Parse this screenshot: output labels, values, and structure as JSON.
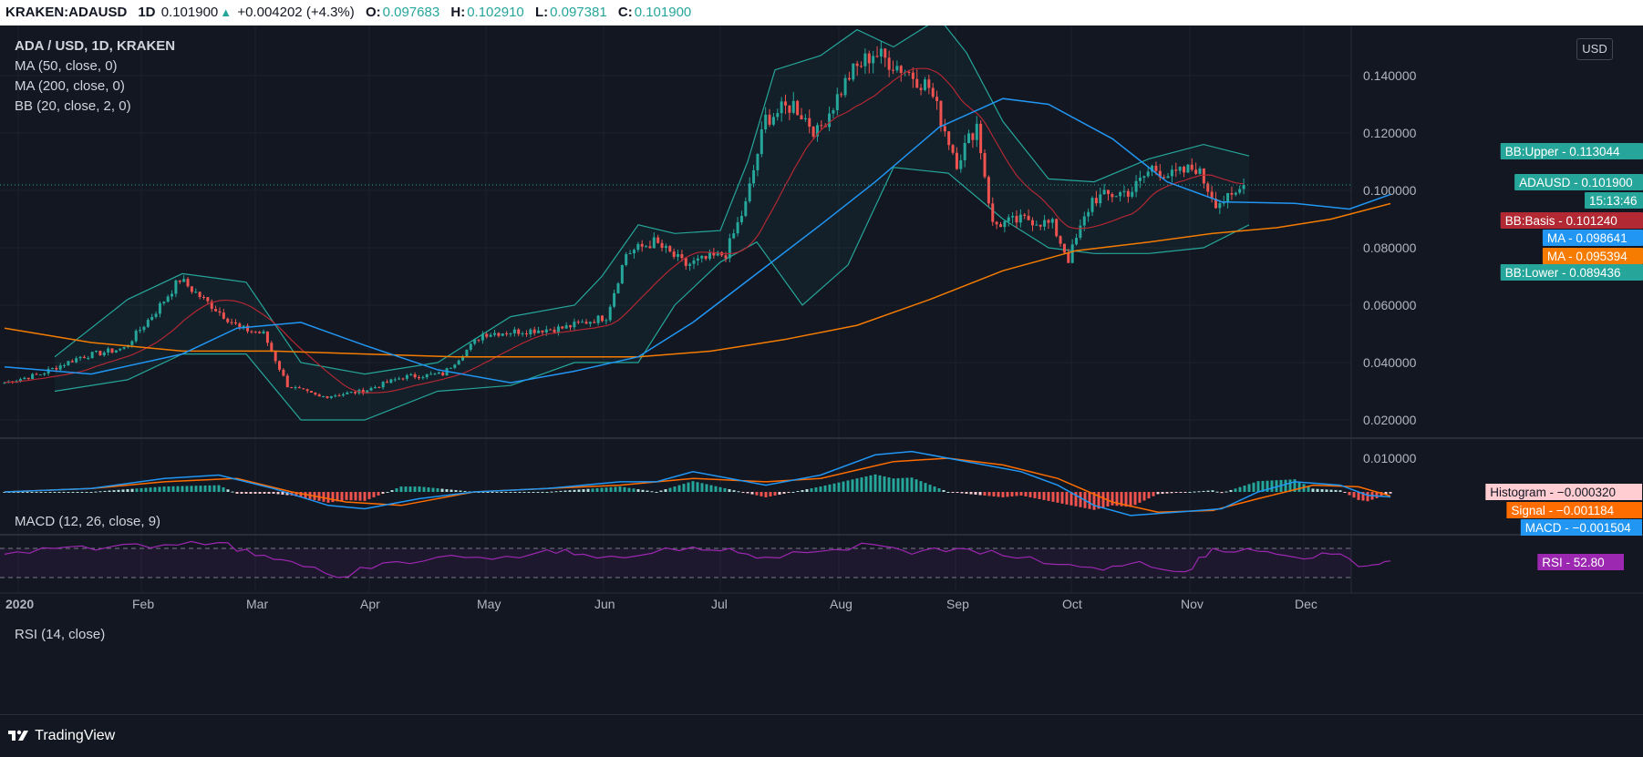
{
  "header": {
    "symbol": "KRAKEN:ADAUSD",
    "interval": "1D",
    "last": "0.101900",
    "arrow": "▲",
    "change": "+0.004202 (+4.3%)",
    "o_label": "O:",
    "o_value": "0.097683",
    "h_label": "H:",
    "h_value": "0.102910",
    "l_label": "L:",
    "l_value": "0.097381",
    "c_label": "C:",
    "c_value": "0.101900"
  },
  "legend": {
    "title": "ADA / USD, 1D, KRAKEN",
    "ma50": "MA (50, close, 0)",
    "ma200": "MA (200, close, 0)",
    "bb": "BB (20, close, 2, 0)",
    "macd": "MACD (12, 26, close, 9)",
    "rsi": "RSI (14, close)"
  },
  "currency_button": "USD",
  "branding": "TradingView",
  "colors": {
    "up": "#26a69a",
    "down": "#ef5350",
    "bb": "#26a69a",
    "bb_basis": "#b22833",
    "ma50": "#2196f3",
    "ma200": "#f57c00",
    "macd": "#2196f3",
    "signal": "#ff6d00",
    "rsi": "#9c27b0"
  },
  "chart_data": {
    "type": "candlestick",
    "price_axis": [
      "0.140000",
      "0.120000",
      "0.100000",
      "0.080000",
      "0.060000",
      "0.040000",
      "0.020000"
    ],
    "price_ticks": [
      0.14,
      0.12,
      0.1,
      0.08,
      0.06,
      0.04,
      0.02
    ],
    "macd_axis": [
      "0.010000"
    ],
    "time_axis": [
      "2020",
      "Feb",
      "Mar",
      "Apr",
      "May",
      "Jun",
      "Jul",
      "Aug",
      "Sep",
      "Oct",
      "Nov",
      "Dec"
    ],
    "close_anchors": [
      [
        "2020-01-01",
        0.033
      ],
      [
        "2020-01-10",
        0.036
      ],
      [
        "2020-01-20",
        0.042
      ],
      [
        "2020-01-31",
        0.045
      ],
      [
        "2020-02-08",
        0.058
      ],
      [
        "2020-02-14",
        0.069
      ],
      [
        "2020-02-20",
        0.062
      ],
      [
        "2020-02-29",
        0.052
      ],
      [
        "2020-03-06",
        0.05
      ],
      [
        "2020-03-12",
        0.032
      ],
      [
        "2020-03-20",
        0.028
      ],
      [
        "2020-03-31",
        0.03
      ],
      [
        "2020-04-10",
        0.035
      ],
      [
        "2020-04-20",
        0.036
      ],
      [
        "2020-04-30",
        0.05
      ],
      [
        "2020-05-10",
        0.051
      ],
      [
        "2020-05-20",
        0.052
      ],
      [
        "2020-05-31",
        0.056
      ],
      [
        "2020-06-05",
        0.078
      ],
      [
        "2020-06-12",
        0.082
      ],
      [
        "2020-06-20",
        0.074
      ],
      [
        "2020-06-30",
        0.078
      ],
      [
        "2020-07-05",
        0.095
      ],
      [
        "2020-07-10",
        0.125
      ],
      [
        "2020-07-17",
        0.13
      ],
      [
        "2020-07-23",
        0.12
      ],
      [
        "2020-07-31",
        0.14
      ],
      [
        "2020-08-06",
        0.148
      ],
      [
        "2020-08-14",
        0.142
      ],
      [
        "2020-08-20",
        0.136
      ],
      [
        "2020-08-27",
        0.11
      ],
      [
        "2020-09-01",
        0.123
      ],
      [
        "2020-09-05",
        0.088
      ],
      [
        "2020-09-14",
        0.09
      ],
      [
        "2020-09-20",
        0.088
      ],
      [
        "2020-09-24",
        0.076
      ],
      [
        "2020-09-30",
        0.097
      ],
      [
        "2020-10-10",
        0.1
      ],
      [
        "2020-10-15",
        0.108
      ],
      [
        "2020-10-20",
        0.105
      ],
      [
        "2020-10-26",
        0.108
      ],
      [
        "2020-10-31",
        0.096
      ],
      [
        "2020-11-04",
        0.097
      ],
      [
        "2020-11-07",
        0.1019
      ]
    ],
    "bb_upper": [
      [
        60,
        0.042
      ],
      [
        140,
        0.062
      ],
      [
        200,
        0.071
      ],
      [
        270,
        0.068
      ],
      [
        330,
        0.04
      ],
      [
        400,
        0.036
      ],
      [
        480,
        0.04
      ],
      [
        560,
        0.056
      ],
      [
        630,
        0.06
      ],
      [
        660,
        0.07
      ],
      [
        700,
        0.088
      ],
      [
        740,
        0.085
      ],
      [
        790,
        0.086
      ],
      [
        820,
        0.11
      ],
      [
        850,
        0.142
      ],
      [
        900,
        0.147
      ],
      [
        940,
        0.156
      ],
      [
        980,
        0.15
      ],
      [
        1030,
        0.16
      ],
      [
        1060,
        0.148
      ],
      [
        1100,
        0.124
      ],
      [
        1150,
        0.104
      ],
      [
        1200,
        0.103
      ],
      [
        1260,
        0.111
      ],
      [
        1320,
        0.116
      ],
      [
        1370,
        0.112
      ]
    ],
    "bb_lower": [
      [
        60,
        0.03
      ],
      [
        140,
        0.034
      ],
      [
        200,
        0.043
      ],
      [
        270,
        0.043
      ],
      [
        330,
        0.02
      ],
      [
        400,
        0.02
      ],
      [
        480,
        0.03
      ],
      [
        560,
        0.032
      ],
      [
        630,
        0.04
      ],
      [
        700,
        0.04
      ],
      [
        740,
        0.06
      ],
      [
        790,
        0.075
      ],
      [
        830,
        0.082
      ],
      [
        880,
        0.06
      ],
      [
        930,
        0.074
      ],
      [
        980,
        0.108
      ],
      [
        1040,
        0.106
      ],
      [
        1100,
        0.09
      ],
      [
        1150,
        0.08
      ],
      [
        1200,
        0.078
      ],
      [
        1260,
        0.078
      ],
      [
        1320,
        0.08
      ],
      [
        1370,
        0.088
      ]
    ],
    "ma50": [
      [
        5,
        0.0385
      ],
      [
        100,
        0.036
      ],
      [
        200,
        0.043
      ],
      [
        260,
        0.052
      ],
      [
        330,
        0.054
      ],
      [
        400,
        0.046
      ],
      [
        480,
        0.0375
      ],
      [
        560,
        0.033
      ],
      [
        630,
        0.037
      ],
      [
        700,
        0.042
      ],
      [
        760,
        0.054
      ],
      [
        830,
        0.071
      ],
      [
        900,
        0.088
      ],
      [
        960,
        0.103
      ],
      [
        1030,
        0.122
      ],
      [
        1100,
        0.132
      ],
      [
        1150,
        0.13
      ],
      [
        1220,
        0.118
      ],
      [
        1280,
        0.103
      ],
      [
        1340,
        0.096
      ],
      [
        1420,
        0.0955
      ],
      [
        1480,
        0.0935
      ],
      [
        1525,
        0.0986
      ]
    ],
    "ma200": [
      [
        5,
        0.052
      ],
      [
        100,
        0.047
      ],
      [
        200,
        0.044
      ],
      [
        300,
        0.044
      ],
      [
        400,
        0.043
      ],
      [
        500,
        0.042
      ],
      [
        600,
        0.042
      ],
      [
        700,
        0.042
      ],
      [
        780,
        0.044
      ],
      [
        860,
        0.048
      ],
      [
        940,
        0.053
      ],
      [
        1020,
        0.062
      ],
      [
        1100,
        0.072
      ],
      [
        1180,
        0.079
      ],
      [
        1260,
        0.082
      ],
      [
        1330,
        0.085
      ],
      [
        1400,
        0.087
      ],
      [
        1460,
        0.09
      ],
      [
        1525,
        0.0954
      ]
    ],
    "macd_line": [
      [
        5,
        0.0
      ],
      [
        100,
        0.001
      ],
      [
        180,
        0.004
      ],
      [
        240,
        0.005
      ],
      [
        300,
        0.001
      ],
      [
        360,
        -0.004
      ],
      [
        400,
        -0.005
      ],
      [
        460,
        -0.002
      ],
      [
        520,
        0.0
      ],
      [
        600,
        0.001
      ],
      [
        680,
        0.003
      ],
      [
        720,
        0.003
      ],
      [
        760,
        0.006
      ],
      [
        840,
        0.002
      ],
      [
        900,
        0.005
      ],
      [
        960,
        0.011
      ],
      [
        1000,
        0.012
      ],
      [
        1060,
        0.009
      ],
      [
        1120,
        0.006
      ],
      [
        1160,
        0.002
      ],
      [
        1200,
        -0.004
      ],
      [
        1240,
        -0.007
      ],
      [
        1290,
        -0.006
      ],
      [
        1340,
        -0.005
      ],
      [
        1380,
        0.0
      ],
      [
        1420,
        0.003
      ],
      [
        1470,
        0.002
      ],
      [
        1500,
        -0.001
      ],
      [
        1525,
        -0.0015
      ]
    ],
    "signal_line": [
      [
        5,
        0.0
      ],
      [
        100,
        0.001
      ],
      [
        180,
        0.003
      ],
      [
        260,
        0.004
      ],
      [
        320,
        0.0
      ],
      [
        380,
        -0.003
      ],
      [
        440,
        -0.004
      ],
      [
        520,
        0.0
      ],
      [
        600,
        0.001
      ],
      [
        680,
        0.002
      ],
      [
        760,
        0.004
      ],
      [
        840,
        0.003
      ],
      [
        900,
        0.004
      ],
      [
        980,
        0.009
      ],
      [
        1040,
        0.01
      ],
      [
        1100,
        0.008
      ],
      [
        1160,
        0.004
      ],
      [
        1220,
        -0.003
      ],
      [
        1270,
        -0.006
      ],
      [
        1330,
        -0.0055
      ],
      [
        1380,
        -0.002
      ],
      [
        1440,
        0.002
      ],
      [
        1490,
        0.0015
      ],
      [
        1525,
        -0.0012
      ]
    ],
    "rsi": [
      [
        5,
        62
      ],
      [
        60,
        70
      ],
      [
        120,
        72
      ],
      [
        180,
        75
      ],
      [
        240,
        78
      ],
      [
        280,
        60
      ],
      [
        320,
        52
      ],
      [
        370,
        30
      ],
      [
        420,
        50
      ],
      [
        480,
        58
      ],
      [
        540,
        55
      ],
      [
        600,
        68
      ],
      [
        640,
        62
      ],
      [
        700,
        60
      ],
      [
        760,
        72
      ],
      [
        800,
        70
      ],
      [
        840,
        58
      ],
      [
        900,
        66
      ],
      [
        960,
        75
      ],
      [
        1000,
        62
      ],
      [
        1050,
        70
      ],
      [
        1100,
        60
      ],
      [
        1160,
        48
      ],
      [
        1210,
        40
      ],
      [
        1250,
        52
      ],
      [
        1300,
        38
      ],
      [
        1330,
        70
      ],
      [
        1380,
        66
      ],
      [
        1420,
        58
      ],
      [
        1460,
        62
      ],
      [
        1500,
        46
      ],
      [
        1525,
        52.8
      ]
    ],
    "price_labels": [
      {
        "name": "BB:Upper",
        "value": "0.113044",
        "color": "#26a69a"
      },
      {
        "name": "ADAUSD",
        "value": "0.101900",
        "color": "#26a69a"
      },
      {
        "name": "",
        "value": "15:13:46",
        "color": "#26a69a"
      },
      {
        "name": "BB:Basis",
        "value": "0.101240",
        "color": "#b22833"
      },
      {
        "name": "MA",
        "value": "0.098641",
        "color": "#2196f3"
      },
      {
        "name": "MA",
        "value": "0.095394",
        "color": "#f57c00"
      },
      {
        "name": "BB:Lower",
        "value": "0.089436",
        "color": "#26a69a"
      }
    ],
    "macd_labels": [
      {
        "name": "Histogram",
        "value": "−0.000320",
        "color": "#ffcdd2",
        "text": "#131722"
      },
      {
        "name": "Signal",
        "value": "−0.001184",
        "color": "#ff6d00",
        "text": "#ffffff"
      },
      {
        "name": "MACD",
        "value": "−0.001504",
        "color": "#2196f3",
        "text": "#ffffff"
      }
    ],
    "rsi_label": {
      "name": "RSI",
      "value": "52.80",
      "color": "#9c27b0"
    }
  }
}
